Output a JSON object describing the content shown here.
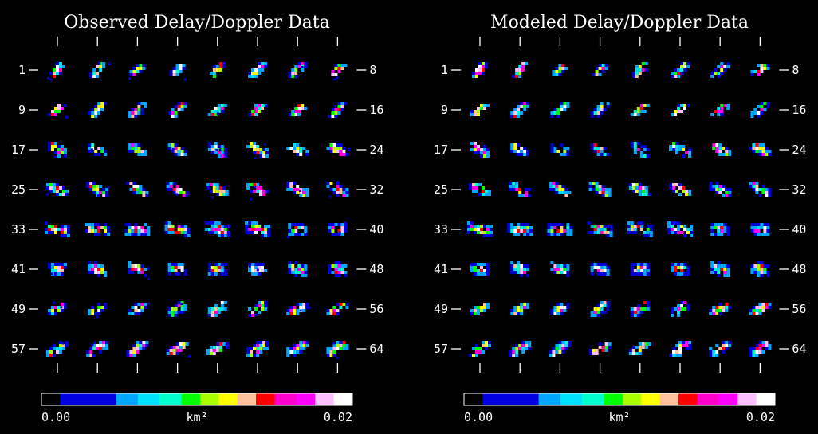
{
  "panels": [
    {
      "title": "Observed Delay/Doppler Data",
      "left_labels": [
        "1",
        "9",
        "17",
        "25",
        "33",
        "41",
        "49",
        "57"
      ],
      "right_labels": [
        "8",
        "16",
        "24",
        "32",
        "40",
        "48",
        "56",
        "64"
      ],
      "colorbar": {
        "min_label": "0.00",
        "max_label": "0.02",
        "unit_label": "km²"
      }
    },
    {
      "title": "Modeled Delay/Doppler Data",
      "left_labels": [
        "1",
        "9",
        "17",
        "25",
        "33",
        "41",
        "49",
        "57"
      ],
      "right_labels": [
        "8",
        "16",
        "24",
        "32",
        "40",
        "48",
        "56",
        "64"
      ],
      "colorbar": {
        "min_label": "0.00",
        "max_label": "0.02",
        "unit_label": "km²"
      }
    }
  ],
  "image_count": 64,
  "colormap": [
    "#000000",
    "#0000dd",
    "#0000ff",
    "#00a6ff",
    "#00e0ff",
    "#00ffcc",
    "#00ff00",
    "#aaff00",
    "#ffff00",
    "#ffc09a",
    "#ff0000",
    "#ff00cc",
    "#ff00ff",
    "#ffc0ff",
    "#ffffff"
  ]
}
